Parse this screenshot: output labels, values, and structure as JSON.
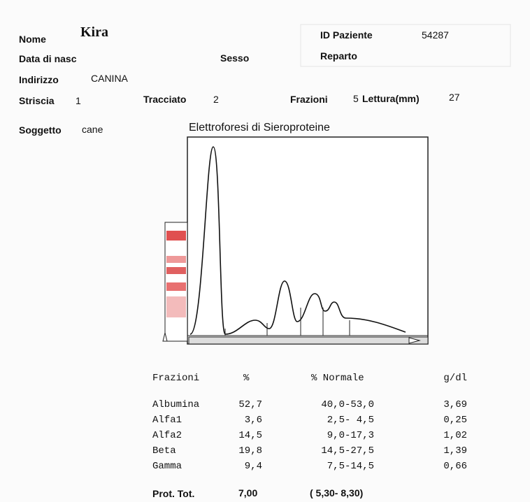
{
  "patient": {
    "name": "Kira",
    "name_label": "Nome",
    "birth_label": "Data di nasc",
    "sex_label": "Sesso",
    "address_label": "Indirizzo",
    "address": "CANINA",
    "id_label": "ID Paziente",
    "id": "54287",
    "ward_label": "Reparto"
  },
  "run": {
    "strip_label": "Striscia",
    "strip": "1",
    "trace_label": "Tracciato",
    "trace": "2",
    "fractions_label": "Frazioni",
    "fractions": "5",
    "reading_label": "Lettura(mm)",
    "reading": "27"
  },
  "subject": {
    "label": "Soggetto",
    "value": "cane"
  },
  "chart": {
    "title": "Elettroforesi di Sieroproteine"
  },
  "table": {
    "header": [
      "Frazioni",
      "%",
      "% Normale",
      "g/dl"
    ],
    "rows": [
      [
        "Albumina",
        "52,7",
        "40,0-53,0",
        "3,69"
      ],
      [
        "Alfa1",
        "3,6",
        "2,5- 4,5",
        "0,25"
      ],
      [
        "Alfa2",
        "14,5",
        "9,0-17,3",
        "1,02"
      ],
      [
        "Beta",
        "19,8",
        "14,5-27,5",
        "1,39"
      ],
      [
        "Gamma",
        "9,4",
        "7,5-14,5",
        "0,66"
      ]
    ]
  },
  "total": {
    "label": "Prot. Tot.",
    "value": "7,00",
    "range": "( 5,30- 8,30)"
  }
}
